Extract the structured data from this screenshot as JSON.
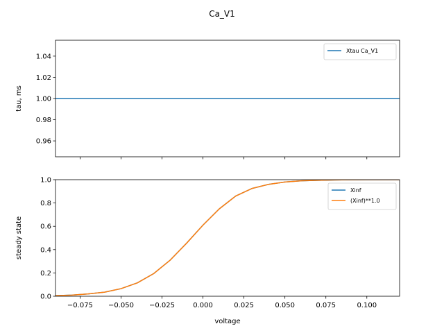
{
  "chart_data": [
    {
      "type": "line",
      "title": "Ca_V1",
      "xlabel": "",
      "ylabel": "tau, ms",
      "xlim": [
        -0.09,
        0.12
      ],
      "ylim": [
        0.945,
        1.055
      ],
      "xticks": [
        -0.075,
        -0.05,
        -0.025,
        0.0,
        0.025,
        0.05,
        0.075,
        0.1
      ],
      "yticks": [
        0.96,
        0.98,
        1.0,
        1.02,
        1.04
      ],
      "ytick_labels": [
        "0.96",
        "0.98",
        "1.00",
        "1.02",
        "1.04"
      ],
      "show_xtick_labels": false,
      "grid": false,
      "legend_position": "top-right",
      "series": [
        {
          "name": "Xtau Ca_V1",
          "color": "#1f77b4",
          "x": [
            -0.09,
            0.12
          ],
          "y": [
            1.0,
            1.0
          ]
        }
      ]
    },
    {
      "type": "line",
      "xlabel": "voltage",
      "ylabel": "steady state",
      "xlim": [
        -0.09,
        0.12
      ],
      "ylim": [
        0.0,
        1.0
      ],
      "xticks": [
        -0.075,
        -0.05,
        -0.025,
        0.0,
        0.025,
        0.05,
        0.075,
        0.1
      ],
      "xtick_labels": [
        "−0.075",
        "−0.050",
        "−0.025",
        "0.000",
        "0.025",
        "0.050",
        "0.075",
        "0.100"
      ],
      "yticks": [
        0.0,
        0.2,
        0.4,
        0.6,
        0.8,
        1.0
      ],
      "ytick_labels": [
        "0.0",
        "0.2",
        "0.4",
        "0.6",
        "0.8",
        "1.0"
      ],
      "show_xtick_labels": true,
      "grid": false,
      "legend_position": "top-right",
      "series": [
        {
          "name": "Xinf",
          "color": "#1f77b4",
          "x": [
            -0.09,
            -0.08,
            -0.07,
            -0.06,
            -0.05,
            -0.04,
            -0.03,
            -0.02,
            -0.01,
            0.0,
            0.01,
            0.02,
            0.03,
            0.04,
            0.05,
            0.06,
            0.07,
            0.08,
            0.09,
            0.1,
            0.11,
            0.12
          ],
          "y": [
            0.005,
            0.01,
            0.02,
            0.035,
            0.065,
            0.115,
            0.195,
            0.31,
            0.455,
            0.61,
            0.75,
            0.86,
            0.925,
            0.96,
            0.98,
            0.99,
            0.995,
            0.998,
            0.999,
            1.0,
            1.0,
            1.0
          ]
        },
        {
          "name": "(Xinf)**1.0",
          "color": "#ff7f0e",
          "x": [
            -0.09,
            -0.08,
            -0.07,
            -0.06,
            -0.05,
            -0.04,
            -0.03,
            -0.02,
            -0.01,
            0.0,
            0.01,
            0.02,
            0.03,
            0.04,
            0.05,
            0.06,
            0.07,
            0.08,
            0.09,
            0.1,
            0.11,
            0.12
          ],
          "y": [
            0.005,
            0.01,
            0.02,
            0.035,
            0.065,
            0.115,
            0.195,
            0.31,
            0.455,
            0.61,
            0.75,
            0.86,
            0.925,
            0.96,
            0.98,
            0.99,
            0.995,
            0.998,
            0.999,
            1.0,
            1.0,
            1.0
          ]
        }
      ]
    }
  ]
}
